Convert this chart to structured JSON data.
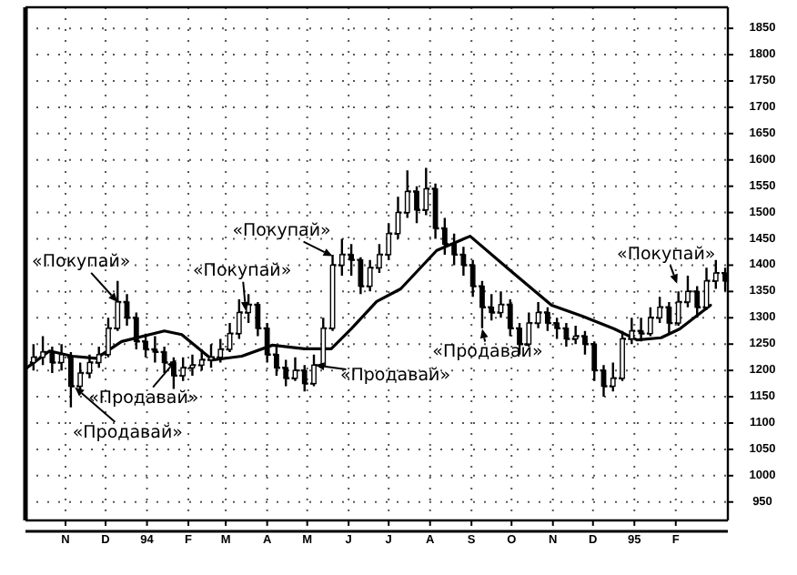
{
  "chart_data": {
    "type": "candlestick",
    "color": "#000000",
    "grid": true,
    "x": [
      "1993-10-22",
      "1993-10-29",
      "1993-11-05",
      "1993-11-12",
      "1993-11-19",
      "1993-11-26",
      "1993-12-03",
      "1993-12-10",
      "1993-12-17",
      "1993-12-24",
      "1993-12-31",
      "1994-01-07",
      "1994-01-14",
      "1994-01-21",
      "1994-01-28",
      "1994-02-04",
      "1994-02-11",
      "1994-02-18",
      "1994-02-25",
      "1994-03-04",
      "1994-03-11",
      "1994-03-18",
      "1994-03-25",
      "1994-04-01",
      "1994-04-08",
      "1994-04-15",
      "1994-04-22",
      "1994-04-29",
      "1994-05-06",
      "1994-05-13",
      "1994-05-20",
      "1994-05-27",
      "1994-06-03",
      "1994-06-10",
      "1994-06-17",
      "1994-06-24",
      "1994-07-01",
      "1994-07-08",
      "1994-07-15",
      "1994-07-22",
      "1994-07-29",
      "1994-08-05",
      "1994-08-12",
      "1994-08-19",
      "1994-08-26",
      "1994-09-02",
      "1994-09-09",
      "1994-09-16",
      "1994-09-23",
      "1994-09-30",
      "1994-10-07",
      "1994-10-14",
      "1994-10-21",
      "1994-10-28",
      "1994-11-04",
      "1994-11-11",
      "1994-11-18",
      "1994-11-25",
      "1994-12-02",
      "1994-12-09",
      "1994-12-16",
      "1994-12-23",
      "1994-12-30",
      "1995-01-06",
      "1995-01-13",
      "1995-01-20",
      "1995-01-27",
      "1995-02-03",
      "1995-02-10",
      "1995-02-17",
      "1995-02-24",
      "1995-03-03",
      "1995-03-10",
      "1995-03-17",
      "1995-03-24"
    ],
    "ohlc": [
      [
        1215,
        1250,
        1200,
        1225
      ],
      [
        1225,
        1265,
        1210,
        1235
      ],
      [
        1235,
        1245,
        1195,
        1215
      ],
      [
        1215,
        1250,
        1200,
        1230
      ],
      [
        1225,
        1235,
        1130,
        1170
      ],
      [
        1170,
        1215,
        1160,
        1195
      ],
      [
        1195,
        1230,
        1185,
        1215
      ],
      [
        1215,
        1245,
        1205,
        1230
      ],
      [
        1230,
        1300,
        1225,
        1280
      ],
      [
        1280,
        1370,
        1275,
        1330
      ],
      [
        1330,
        1345,
        1285,
        1300
      ],
      [
        1300,
        1310,
        1240,
        1255
      ],
      [
        1255,
        1270,
        1225,
        1240
      ],
      [
        1240,
        1265,
        1215,
        1235
      ],
      [
        1235,
        1245,
        1195,
        1215
      ],
      [
        1215,
        1225,
        1165,
        1190
      ],
      [
        1190,
        1225,
        1180,
        1205
      ],
      [
        1205,
        1230,
        1190,
        1210
      ],
      [
        1210,
        1240,
        1200,
        1220
      ],
      [
        1220,
        1250,
        1205,
        1225
      ],
      [
        1225,
        1260,
        1215,
        1240
      ],
      [
        1240,
        1290,
        1235,
        1270
      ],
      [
        1270,
        1335,
        1260,
        1310
      ],
      [
        1310,
        1345,
        1290,
        1325
      ],
      [
        1325,
        1330,
        1265,
        1280
      ],
      [
        1280,
        1290,
        1215,
        1230
      ],
      [
        1230,
        1245,
        1190,
        1205
      ],
      [
        1205,
        1220,
        1170,
        1185
      ],
      [
        1185,
        1225,
        1180,
        1200
      ],
      [
        1200,
        1210,
        1160,
        1175
      ],
      [
        1175,
        1230,
        1170,
        1210
      ],
      [
        1210,
        1300,
        1205,
        1280
      ],
      [
        1280,
        1420,
        1275,
        1400
      ],
      [
        1400,
        1450,
        1380,
        1420
      ],
      [
        1420,
        1440,
        1380,
        1410
      ],
      [
        1410,
        1415,
        1345,
        1360
      ],
      [
        1360,
        1410,
        1350,
        1395
      ],
      [
        1395,
        1440,
        1385,
        1420
      ],
      [
        1420,
        1480,
        1410,
        1460
      ],
      [
        1460,
        1530,
        1450,
        1500
      ],
      [
        1500,
        1580,
        1490,
        1540
      ],
      [
        1540,
        1550,
        1480,
        1505
      ],
      [
        1505,
        1585,
        1495,
        1545
      ],
      [
        1545,
        1555,
        1450,
        1470
      ],
      [
        1470,
        1490,
        1420,
        1440
      ],
      [
        1440,
        1460,
        1400,
        1420
      ],
      [
        1420,
        1435,
        1380,
        1400
      ],
      [
        1400,
        1410,
        1340,
        1360
      ],
      [
        1360,
        1370,
        1280,
        1320
      ],
      [
        1320,
        1345,
        1295,
        1310
      ],
      [
        1310,
        1350,
        1300,
        1325
      ],
      [
        1325,
        1335,
        1265,
        1280
      ],
      [
        1280,
        1290,
        1230,
        1250
      ],
      [
        1250,
        1310,
        1245,
        1290
      ],
      [
        1290,
        1330,
        1280,
        1310
      ],
      [
        1310,
        1320,
        1275,
        1290
      ],
      [
        1290,
        1300,
        1260,
        1280
      ],
      [
        1280,
        1290,
        1245,
        1260
      ],
      [
        1260,
        1285,
        1250,
        1265
      ],
      [
        1265,
        1275,
        1230,
        1250
      ],
      [
        1250,
        1255,
        1180,
        1200
      ],
      [
        1200,
        1210,
        1150,
        1170
      ],
      [
        1170,
        1215,
        1160,
        1185
      ],
      [
        1185,
        1275,
        1180,
        1260
      ],
      [
        1260,
        1300,
        1250,
        1275
      ],
      [
        1275,
        1300,
        1255,
        1270
      ],
      [
        1270,
        1320,
        1265,
        1300
      ],
      [
        1300,
        1340,
        1290,
        1320
      ],
      [
        1320,
        1330,
        1270,
        1290
      ],
      [
        1290,
        1350,
        1285,
        1330
      ],
      [
        1330,
        1380,
        1320,
        1350
      ],
      [
        1350,
        1360,
        1300,
        1320
      ],
      [
        1320,
        1395,
        1315,
        1370
      ],
      [
        1370,
        1410,
        1355,
        1385
      ],
      [
        1385,
        1395,
        1350,
        1370
      ]
    ],
    "series": [
      {
        "type": "line",
        "color": "#000000",
        "x": [
          "1993-10-16",
          "1993-11-03",
          "1993-11-20",
          "1993-12-08",
          "1993-12-27",
          "1994-01-28",
          "1994-02-10",
          "1994-03-05",
          "1994-03-27",
          "1994-04-19",
          "1994-05-13",
          "1994-06-02",
          "1994-06-17",
          "1994-07-06",
          "1994-07-24",
          "1994-08-20",
          "1994-09-14",
          "1994-10-14",
          "1994-11-14",
          "1994-12-07",
          "1994-12-31",
          "1995-01-17",
          "1995-02-04",
          "1995-02-18",
          "1995-03-13"
        ],
        "values": [
          1203,
          1237,
          1227,
          1223,
          1255,
          1275,
          1268,
          1220,
          1227,
          1248,
          1241,
          1241,
          1279,
          1331,
          1355,
          1428,
          1455,
          1390,
          1324,
          1303,
          1279,
          1258,
          1262,
          1279,
          1324
        ]
      }
    ],
    "xlim": [
      "1993-10-16",
      "1995-03-26"
    ],
    "xticks": [
      {
        "value": "1993-11-15",
        "label": "N"
      },
      {
        "value": "1993-12-15",
        "label": "D"
      },
      {
        "value": "1994-01-15",
        "label": "94"
      },
      {
        "value": "1994-02-15",
        "label": "F"
      },
      {
        "value": "1994-03-15",
        "label": "M"
      },
      {
        "value": "1994-04-15",
        "label": "A"
      },
      {
        "value": "1994-05-15",
        "label": "M"
      },
      {
        "value": "1994-06-15",
        "label": "J"
      },
      {
        "value": "1994-07-15",
        "label": "J"
      },
      {
        "value": "1994-08-15",
        "label": "A"
      },
      {
        "value": "1994-09-15",
        "label": "S"
      },
      {
        "value": "1994-10-15",
        "label": "O"
      },
      {
        "value": "1994-11-15",
        "label": "N"
      },
      {
        "value": "1994-12-15",
        "label": "D"
      },
      {
        "value": "1995-01-15",
        "label": "95"
      },
      {
        "value": "1995-02-15",
        "label": "F"
      }
    ],
    "ylim": [
      915,
      1890
    ],
    "yticks": [
      950,
      1000,
      1050,
      1100,
      1150,
      1200,
      1250,
      1300,
      1350,
      1400,
      1450,
      1500,
      1550,
      1600,
      1650,
      1700,
      1750,
      1800,
      1850
    ],
    "annotations": [
      {
        "text": "«Покупай»",
        "x": "1993-12-24",
        "y": 1330
      },
      {
        "text": "«Продавай»",
        "x": "1994-02-06",
        "y": 1220
      },
      {
        "text": "«Продавай»",
        "x": "1993-11-22",
        "y": 1168
      },
      {
        "text": "«Покупай»",
        "x": "1994-03-30",
        "y": 1313
      },
      {
        "text": "«Покупай»",
        "x": "1994-06-03",
        "y": 1417
      },
      {
        "text": "«Продавай»",
        "x": "1994-05-21",
        "y": 1210
      },
      {
        "text": "«Продавай»",
        "x": "1994-09-23",
        "y": 1279
      },
      {
        "text": "«Покупай»",
        "x": "1995-02-16",
        "y": 1365
      }
    ]
  }
}
